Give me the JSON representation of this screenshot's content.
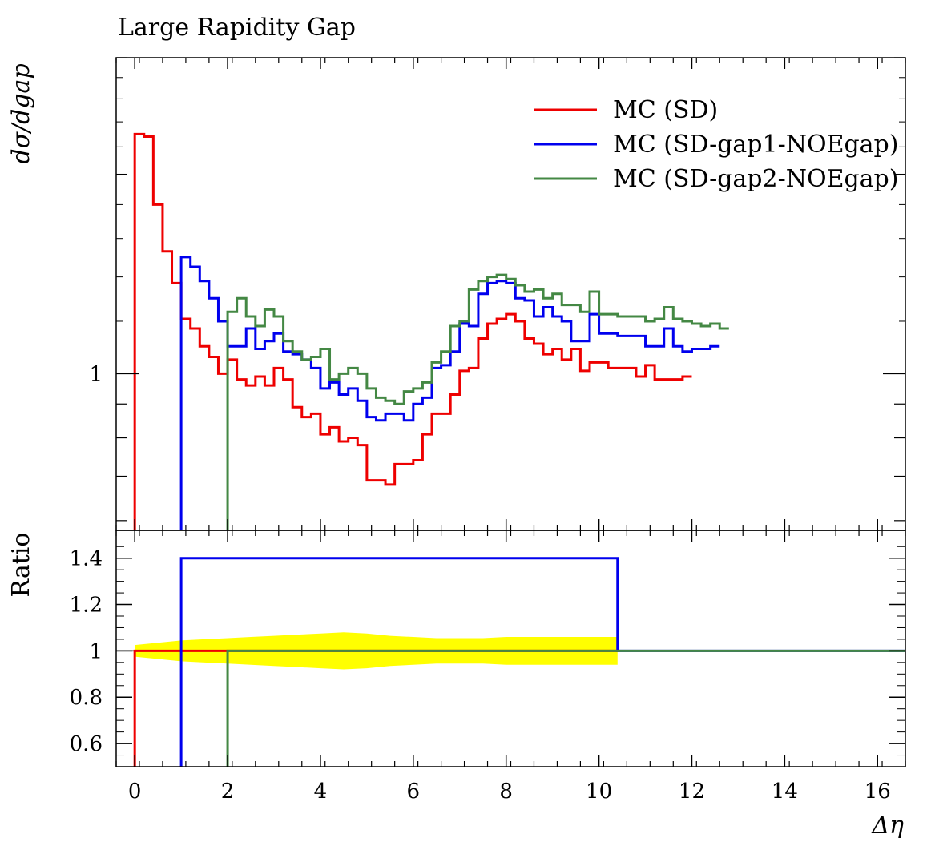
{
  "chart_data": {
    "type": "line",
    "title": "Large Rapidity Gap",
    "xlabel": "Δη",
    "ylabel": "dσ/dgap",
    "ratio_ylabel": "Ratio",
    "xlim": [
      -0.4,
      16.6
    ],
    "ylim": [
      0.58,
      3.0
    ],
    "ylog": true,
    "ratio_ylim": [
      0.5,
      1.52
    ],
    "legend_position": "top-right",
    "xticks": [
      0,
      2,
      4,
      6,
      8,
      10,
      12,
      14,
      16
    ],
    "xtick_labels": [
      "0",
      "2",
      "4",
      "6",
      "8",
      "10",
      "12",
      "14",
      "16"
    ],
    "main_yticks": [
      1
    ],
    "main_ytick_labels": [
      "1"
    ],
    "ratio_yticks": [
      0.6,
      0.8,
      1.0,
      1.2,
      1.4
    ],
    "ratio_ytick_labels": [
      "0.6",
      "0.8",
      "1",
      "1.2",
      "1.4"
    ],
    "bin_width": 0.2,
    "series": [
      {
        "name": "MC (SD)",
        "color": "#ee0000",
        "x_start": 0.0,
        "values": [
          2.3,
          2.28,
          1.8,
          1.53,
          1.37,
          1.21,
          1.17,
          1.1,
          1.06,
          1.0,
          1.05,
          0.98,
          0.96,
          0.99,
          0.96,
          1.02,
          0.98,
          0.89,
          0.86,
          0.87,
          0.81,
          0.83,
          0.79,
          0.8,
          0.78,
          0.69,
          0.69,
          0.68,
          0.73,
          0.73,
          0.74,
          0.81,
          0.87,
          0.87,
          0.93,
          1.01,
          1.02,
          1.13,
          1.19,
          1.21,
          1.23,
          1.2,
          1.13,
          1.11,
          1.07,
          1.09,
          1.05,
          1.09,
          1.01,
          1.04,
          1.04,
          1.02,
          1.02,
          1.02,
          0.99,
          1.03,
          0.98,
          0.98,
          0.98,
          0.99
        ]
      },
      {
        "name": "MC (SD-gap1-NOEgap)",
        "color": "#0000ee",
        "x_start": 1.0,
        "values": [
          1.5,
          1.45,
          1.38,
          1.3,
          1.2,
          1.1,
          1.1,
          1.17,
          1.09,
          1.12,
          1.15,
          1.08,
          1.07,
          1.05,
          1.02,
          0.95,
          0.97,
          0.93,
          0.95,
          0.91,
          0.86,
          0.85,
          0.87,
          0.87,
          0.85,
          0.9,
          0.92,
          1.02,
          1.03,
          1.08,
          1.19,
          1.18,
          1.32,
          1.37,
          1.38,
          1.37,
          1.3,
          1.29,
          1.22,
          1.26,
          1.22,
          1.2,
          1.12,
          1.12,
          1.23,
          1.15,
          1.15,
          1.14,
          1.14,
          1.14,
          1.1,
          1.1,
          1.17,
          1.1,
          1.08,
          1.09,
          1.09,
          1.1
        ]
      },
      {
        "name": "MC (SD-gap2-NOEgap)",
        "color": "#448844",
        "x_start": 2.0,
        "values": [
          1.24,
          1.3,
          1.22,
          1.18,
          1.25,
          1.22,
          1.12,
          1.08,
          1.05,
          1.06,
          1.09,
          0.98,
          1.0,
          1.02,
          1.0,
          0.95,
          0.92,
          0.91,
          0.9,
          0.94,
          0.95,
          0.97,
          1.04,
          1.08,
          1.18,
          1.2,
          1.34,
          1.38,
          1.4,
          1.41,
          1.39,
          1.36,
          1.33,
          1.34,
          1.3,
          1.32,
          1.27,
          1.27,
          1.24,
          1.33,
          1.23,
          1.23,
          1.22,
          1.22,
          1.22,
          1.2,
          1.21,
          1.26,
          1.21,
          1.2,
          1.19,
          1.18,
          1.19,
          1.17
        ]
      }
    ],
    "ratio_series": [
      {
        "name": "MC (SD-gap1-NOEgap)",
        "color": "#0000ee",
        "x_start": 1.0,
        "x_end": 10.4,
        "value": 1.4
      },
      {
        "name": "MC (SD-gap2-NOEgap)",
        "color": "#448844",
        "x_start": 2.0,
        "x_end": 10.4,
        "value": 1.0
      }
    ],
    "uncertainty_band": {
      "color": "#ffff00",
      "x": [
        0.0,
        0.5,
        1.0,
        1.5,
        2.0,
        2.5,
        3.0,
        3.5,
        4.0,
        4.5,
        5.0,
        5.5,
        6.0,
        6.5,
        7.0,
        7.5,
        8.0,
        8.5,
        9.0,
        9.5,
        10.0,
        10.4
      ],
      "half_width": [
        0.025,
        0.035,
        0.045,
        0.05,
        0.055,
        0.06,
        0.065,
        0.07,
        0.075,
        0.08,
        0.075,
        0.065,
        0.06,
        0.055,
        0.055,
        0.055,
        0.06,
        0.06,
        0.06,
        0.06,
        0.06,
        0.06
      ]
    }
  }
}
